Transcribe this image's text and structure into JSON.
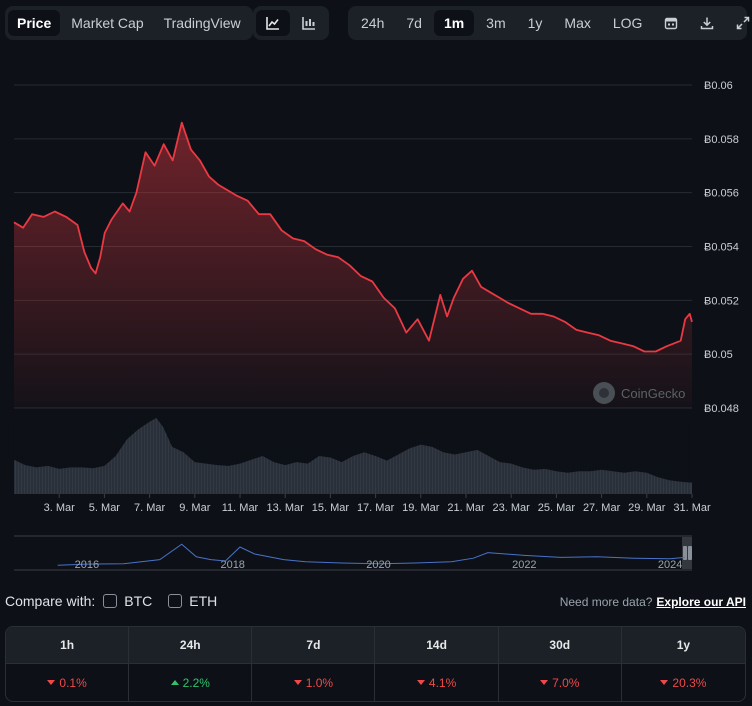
{
  "view_tabs": [
    {
      "label": "Price",
      "active": true
    },
    {
      "label": "Market Cap",
      "active": false
    },
    {
      "label": "TradingView",
      "active": false
    }
  ],
  "chart_type_buttons": [
    {
      "icon": "line-chart-icon",
      "active": true
    },
    {
      "icon": "candlestick-chart-icon",
      "active": false
    }
  ],
  "range_buttons": [
    {
      "label": "24h",
      "active": false
    },
    {
      "label": "7d",
      "active": false
    },
    {
      "label": "1m",
      "active": true
    },
    {
      "label": "3m",
      "active": false
    },
    {
      "label": "1y",
      "active": false
    },
    {
      "label": "Max",
      "active": false
    },
    {
      "label": "LOG",
      "active": false
    }
  ],
  "tool_icons": [
    "calendar-icon",
    "download-icon",
    "fullscreen-icon"
  ],
  "watermark": "CoinGecko",
  "colors": {
    "line": "#ea3943",
    "volume": "#3a414b",
    "overview": "#4a72c8",
    "up": "#2fc26b",
    "down": "#f04848"
  },
  "chart_data": {
    "type": "line",
    "price_axis": {
      "ticks": [
        0.06,
        0.058,
        0.056,
        0.054,
        0.052,
        0.05,
        0.048
      ],
      "tick_labels": [
        "Ƀ0.06",
        "Ƀ0.058",
        "Ƀ0.056",
        "Ƀ0.054",
        "Ƀ0.052",
        "Ƀ0.05",
        "Ƀ0.048"
      ],
      "ylim": [
        0.048,
        0.0605
      ]
    },
    "x_tick_labels": [
      "3. Mar",
      "5. Mar",
      "7. Mar",
      "9. Mar",
      "11. Mar",
      "13. Mar",
      "15. Mar",
      "17. Mar",
      "19. Mar",
      "21. Mar",
      "23. Mar",
      "25. Mar",
      "27. Mar",
      "29. Mar",
      "31. Mar"
    ],
    "price": {
      "x": [
        1.2,
        1.6,
        2,
        2.5,
        3,
        3.5,
        4,
        4.3,
        4.6,
        4.8,
        5,
        5.2,
        5.5,
        6,
        6.3,
        6.6,
        7,
        7.4,
        7.8,
        8.2,
        8.6,
        9,
        9.4,
        9.8,
        10.2,
        10.6,
        11,
        11.5,
        12,
        12.5,
        13,
        13.5,
        14,
        14.5,
        15,
        15.5,
        16,
        16.5,
        17,
        17.5,
        18,
        18.5,
        19,
        19.5,
        20,
        20.3,
        20.6,
        21,
        21.4,
        21.8,
        22.2,
        22.6,
        23,
        23.5,
        24,
        24.5,
        25,
        25.5,
        26,
        26.5,
        27,
        27.5,
        28,
        28.5,
        29,
        29.5,
        30,
        30.3,
        30.6,
        30.8,
        31,
        31.1
      ],
      "y": [
        0.0549,
        0.0547,
        0.0552,
        0.0551,
        0.0553,
        0.0551,
        0.0548,
        0.0538,
        0.0532,
        0.053,
        0.0536,
        0.0545,
        0.055,
        0.0556,
        0.0553,
        0.056,
        0.0575,
        0.057,
        0.0578,
        0.0572,
        0.0586,
        0.0576,
        0.0572,
        0.0566,
        0.0563,
        0.0561,
        0.0559,
        0.0557,
        0.0552,
        0.0552,
        0.0546,
        0.0543,
        0.0542,
        0.0539,
        0.0537,
        0.0536,
        0.0533,
        0.0529,
        0.0527,
        0.0521,
        0.0517,
        0.0508,
        0.0513,
        0.0505,
        0.0522,
        0.0514,
        0.0521,
        0.0528,
        0.0531,
        0.0525,
        0.0523,
        0.0521,
        0.0519,
        0.0517,
        0.0515,
        0.0515,
        0.0514,
        0.0512,
        0.0509,
        0.0508,
        0.0507,
        0.0505,
        0.0504,
        0.0503,
        0.0501,
        0.0501,
        0.0503,
        0.0504,
        0.0505,
        0.0513,
        0.0515,
        0.0512
      ]
    },
    "volume": {
      "x": [
        1,
        1.5,
        2,
        2.5,
        3,
        3.5,
        4,
        4.5,
        5,
        5.5,
        6,
        6.5,
        7,
        7.3,
        7.6,
        8,
        8.5,
        9,
        9.5,
        10,
        10.5,
        11,
        11.5,
        12,
        12.5,
        13,
        13.5,
        14,
        14.5,
        15,
        15.5,
        16,
        16.5,
        17,
        17.5,
        18,
        18.5,
        19,
        19.5,
        20,
        20.5,
        21,
        21.5,
        22,
        22.5,
        23,
        23.5,
        24,
        24.5,
        25,
        25.5,
        26,
        26.5,
        27,
        27.5,
        28,
        28.5,
        29,
        29.5,
        30,
        30.5,
        31
      ],
      "rel": [
        0.45,
        0.38,
        0.35,
        0.37,
        0.33,
        0.35,
        0.35,
        0.34,
        0.37,
        0.5,
        0.72,
        0.85,
        0.95,
        1.0,
        0.88,
        0.62,
        0.55,
        0.42,
        0.4,
        0.38,
        0.37,
        0.4,
        0.45,
        0.5,
        0.42,
        0.38,
        0.42,
        0.4,
        0.5,
        0.48,
        0.42,
        0.5,
        0.55,
        0.5,
        0.44,
        0.52,
        0.6,
        0.65,
        0.62,
        0.55,
        0.52,
        0.55,
        0.58,
        0.5,
        0.42,
        0.4,
        0.35,
        0.32,
        0.33,
        0.3,
        0.28,
        0.3,
        0.3,
        0.32,
        0.3,
        0.28,
        0.3,
        0.28,
        0.22,
        0.18,
        0.16,
        0.15
      ]
    },
    "overview": {
      "x_tick_labels": [
        "2016",
        "2018",
        "2020",
        "2022",
        "2024"
      ],
      "x": [
        2015.6,
        2016,
        2016.5,
        2017,
        2017.3,
        2017.5,
        2017.7,
        2017.9,
        2018.1,
        2018.3,
        2018.7,
        2019,
        2019.5,
        2020,
        2020.5,
        2021,
        2021.3,
        2021.5,
        2022,
        2022.5,
        2023,
        2023.5,
        2024,
        2024.2
      ],
      "rel": [
        0.1,
        0.14,
        0.15,
        0.3,
        0.85,
        0.4,
        0.3,
        0.25,
        0.75,
        0.5,
        0.3,
        0.22,
        0.18,
        0.15,
        0.18,
        0.22,
        0.35,
        0.55,
        0.45,
        0.38,
        0.4,
        0.35,
        0.33,
        0.38
      ]
    }
  },
  "compare": {
    "label": "Compare with:",
    "options": [
      "BTC",
      "ETH"
    ]
  },
  "more_data": {
    "text": "Need more data?",
    "link": "Explore our API"
  },
  "performance": [
    {
      "period": "1h",
      "value": "0.1%",
      "dir": "down"
    },
    {
      "period": "24h",
      "value": "2.2%",
      "dir": "up"
    },
    {
      "period": "7d",
      "value": "1.0%",
      "dir": "down"
    },
    {
      "period": "14d",
      "value": "4.1%",
      "dir": "down"
    },
    {
      "period": "30d",
      "value": "7.0%",
      "dir": "down"
    },
    {
      "period": "1y",
      "value": "20.3%",
      "dir": "down"
    }
  ]
}
